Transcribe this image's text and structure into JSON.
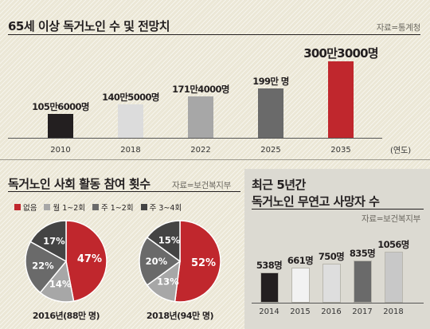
{
  "colors": {
    "accent": "#c0272d",
    "dark": "#231f20",
    "mid_dark": "#6a6a6a",
    "mid": "#a7a7a7",
    "light": "#dedede",
    "lighter": "#f2f2f2"
  },
  "top_chart": {
    "title": "65세 이상 독거노인 수 및 전망치",
    "source": "자료=통계청",
    "unit": "(연도)"
  },
  "left_chart": {
    "title": "독거노인 사회 활동 참여 횟수",
    "source": "자료=보건복지부",
    "legend": [
      {
        "label": "없음",
        "color": "#c0272d"
      },
      {
        "label": "월 1~2회",
        "color": "#a7a7a7"
      },
      {
        "label": "주 1~2회",
        "color": "#6a6a6a"
      },
      {
        "label": "주 3~4회",
        "color": "#444444"
      }
    ]
  },
  "right_chart": {
    "title_line1": "최근 5년간",
    "title_line2": "독거노인 무연고 사망자 수",
    "source": "자료=보건복지부"
  },
  "chart_data": [
    {
      "type": "bar",
      "title": "65세 이상 독거노인 수 및 전망치",
      "xlabel": "(연도)",
      "categories": [
        "2010",
        "2018",
        "2022",
        "2025",
        "2035"
      ],
      "values": [
        1056000,
        1405000,
        1714000,
        1990000,
        3003000
      ],
      "data_labels": [
        "105만6000명",
        "140만5000명",
        "171만4000명",
        "199만 명",
        "300만3000명"
      ],
      "bar_colors": [
        "#231f20",
        "#dcdcdc",
        "#a7a7a7",
        "#6a6a6a",
        "#c0272d"
      ],
      "ylim": [
        0,
        3003000
      ]
    },
    {
      "type": "pie",
      "title": "2016년(88만 명)",
      "labels": [
        "없음",
        "월 1~2회",
        "주 1~2회",
        "주 3~4회"
      ],
      "values": [
        47,
        14,
        22,
        17
      ],
      "data_labels": [
        "47%",
        "14%",
        "22%",
        "17%"
      ]
    },
    {
      "type": "pie",
      "title": "2018년(94만 명)",
      "labels": [
        "없음",
        "월 1~2회",
        "주 1~2회",
        "주 3~4회"
      ],
      "values": [
        52,
        13,
        20,
        15
      ],
      "data_labels": [
        "52%",
        "13%",
        "20%",
        "15%"
      ]
    },
    {
      "type": "bar",
      "title": "최근 5년간 독거노인 무연고 사망자 수",
      "categories": [
        "2014",
        "2015",
        "2016",
        "2017",
        "2018"
      ],
      "values": [
        538,
        661,
        750,
        835,
        1056
      ],
      "data_labels": [
        "538명",
        "661명",
        "750명",
        "835명",
        "1056명"
      ],
      "bar_colors": [
        "#231f20",
        "#f2f2f2",
        "#dedede",
        "#6a6a6a",
        "#c8c8c8"
      ],
      "ylim": [
        0,
        1056
      ]
    }
  ]
}
